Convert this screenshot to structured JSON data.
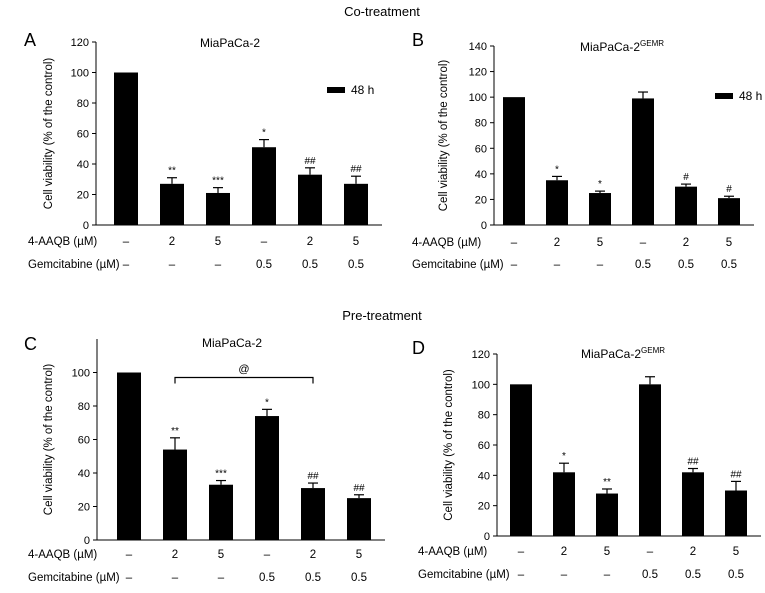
{
  "sections": {
    "top": "Co-treatment",
    "bottom": "Pre-treatment"
  },
  "chart_data": [
    {
      "panel": "A",
      "type": "bar",
      "title": "MiaPaCa-2",
      "title_sup": "",
      "ylabel": "Cell viability (% of the control)",
      "ylim": [
        0,
        120
      ],
      "yticks": [
        0,
        20,
        40,
        60,
        80,
        100,
        120
      ],
      "legend": "48 h",
      "values": [
        100,
        27,
        21,
        51,
        33,
        27
      ],
      "errors": [
        0,
        4,
        3.5,
        5,
        4.5,
        5
      ],
      "sig": [
        "",
        "**",
        "***",
        "*",
        "##",
        "##"
      ],
      "rows": [
        {
          "label": "4-AAQB (µM)",
          "values": [
            "–",
            "2",
            "5",
            "–",
            "2",
            "5"
          ]
        },
        {
          "label": "Gemcitabine (µM)",
          "values": [
            "–",
            "–",
            "–",
            "0.5",
            "0.5",
            "0.5"
          ]
        }
      ],
      "bracket": null
    },
    {
      "panel": "B",
      "type": "bar",
      "title": "MiaPaCa-2",
      "title_sup": "GEMR",
      "ylabel": "Cell viability (% of the control)",
      "ylim": [
        0,
        140
      ],
      "yticks": [
        0,
        20,
        40,
        60,
        80,
        100,
        120,
        140
      ],
      "legend": "48 h",
      "values": [
        100,
        35,
        25,
        99,
        30,
        21
      ],
      "errors": [
        0,
        3,
        1.5,
        5,
        2,
        1.5
      ],
      "sig": [
        "",
        "*",
        "*",
        "",
        "#",
        "#"
      ],
      "rows": [
        {
          "label": "4-AAQB (µM)",
          "values": [
            "–",
            "2",
            "5",
            "–",
            "2",
            "5"
          ]
        },
        {
          "label": "Gemcitabine (µM)",
          "values": [
            "–",
            "–",
            "–",
            "0.5",
            "0.5",
            "0.5"
          ]
        }
      ],
      "bracket": null
    },
    {
      "panel": "C",
      "type": "bar",
      "title": "MiaPaCa-2",
      "title_sup": "",
      "ylabel": "Cell viability (% of the control)",
      "ylim": [
        0,
        120
      ],
      "yticks": [
        0,
        20,
        40,
        60,
        80,
        100
      ],
      "legend": "",
      "values": [
        100,
        54,
        33,
        74,
        31,
        25
      ],
      "errors": [
        0,
        7,
        2.5,
        4,
        3,
        2
      ],
      "sig": [
        "",
        "**",
        "***",
        "*",
        "##",
        "##"
      ],
      "rows": [
        {
          "label": "4-AAQB (µM)",
          "values": [
            "–",
            "2",
            "5",
            "–",
            "2",
            "5"
          ]
        },
        {
          "label": "Gemcitabine (µM)",
          "values": [
            "–",
            "–",
            "–",
            "0.5",
            "0.5",
            "0.5"
          ]
        }
      ],
      "bracket": {
        "from": 1,
        "to": 4,
        "label": "@",
        "y": 97
      }
    },
    {
      "panel": "D",
      "type": "bar",
      "title": "MiaPaCa-2",
      "title_sup": "GEMR",
      "ylabel": "Cell viability (% of the control)",
      "ylim": [
        0,
        120
      ],
      "yticks": [
        0,
        20,
        40,
        60,
        80,
        100,
        120
      ],
      "legend": "",
      "values": [
        100,
        42,
        28,
        100,
        42,
        30
      ],
      "errors": [
        0,
        6,
        3,
        5,
        2.5,
        6
      ],
      "sig": [
        "",
        "*",
        "**",
        "",
        "##",
        "##"
      ],
      "rows": [
        {
          "label": "4-AAQB (µM)",
          "values": [
            "–",
            "2",
            "5",
            "–",
            "2",
            "5"
          ]
        },
        {
          "label": "Gemcitabine (µM)",
          "values": [
            "–",
            "–",
            "–",
            "0.5",
            "0.5",
            "0.5"
          ]
        }
      ],
      "bracket": null
    }
  ]
}
